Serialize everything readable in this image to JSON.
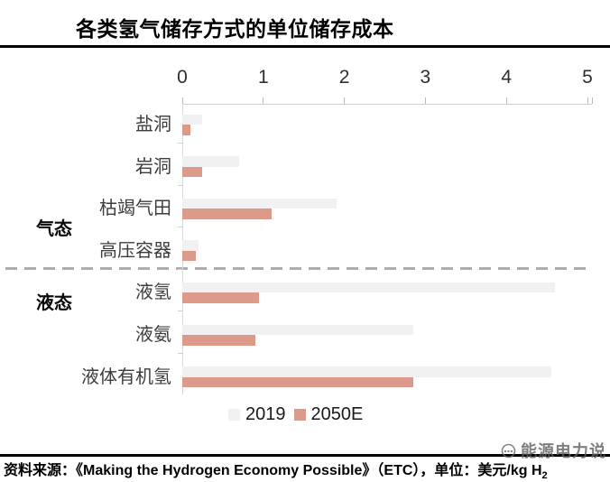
{
  "title": "各类氢气储存方式的单位储存成本",
  "chart_data": {
    "type": "bar",
    "orientation": "horizontal",
    "title": "各类氢气储存方式的单位储存成本",
    "xlabel": "",
    "ylabel": "",
    "unit": "美元/kg H2",
    "xlim": [
      0,
      5
    ],
    "ticks": [
      0,
      1,
      2,
      3,
      4,
      5
    ],
    "axis_position": "top",
    "grid": false,
    "legend_position": "bottom",
    "categories": [
      "盐洞",
      "岩洞",
      "枯竭气田",
      "高压容器",
      "液氢",
      "液氨",
      "液体有机氢"
    ],
    "groups": [
      {
        "label": "气态",
        "categories": [
          "盐洞",
          "岩洞",
          "枯竭气田",
          "高压容器"
        ]
      },
      {
        "label": "液态",
        "categories": [
          "液氢",
          "液氨",
          "液体有机氢"
        ]
      }
    ],
    "series": [
      {
        "name": "2019",
        "color": "#F1F1F3",
        "values": [
          0.25,
          0.7,
          1.9,
          0.2,
          4.6,
          2.85,
          4.55
        ]
      },
      {
        "name": "2050E",
        "color": "#DC9A8B",
        "values": [
          0.1,
          0.25,
          1.1,
          0.17,
          0.95,
          0.9,
          2.85
        ]
      }
    ]
  },
  "colors": {
    "series_2019": "#F1F1F3",
    "series_2050e": "#DC9A8B",
    "axis_line": "#cfcfcf",
    "dashed_divider": "#adadad",
    "title_text": "#000000"
  },
  "footer": {
    "source_text": "资料来源：《Making the Hydrogen Economy Possible》（ETC），单位：美元/kg H",
    "unit_sub": "2"
  },
  "watermark": {
    "label": "能源电力说"
  }
}
